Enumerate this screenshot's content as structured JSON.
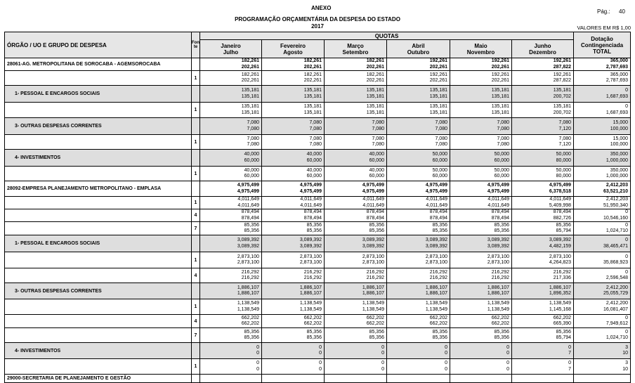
{
  "header": {
    "title": "ANEXO",
    "subtitle": "PROGRAMAÇÃO ORÇAMENTÁRIA DA DESPESA DO ESTADO",
    "year": "2017",
    "page_label": "Pág.:",
    "page": "40",
    "units": "VALORES EM R$ 1,00"
  },
  "table": {
    "columns": {
      "label": "ÓRGÃO / UO  E GRUPO DE DESPESA",
      "fonte": "Fonte",
      "quotas": "QUOTAS",
      "months": [
        [
          "Janeiro",
          "Julho"
        ],
        [
          "Fevereiro",
          "Agosto"
        ],
        [
          "Março",
          "Setembro"
        ],
        [
          "Abril",
          "Outubro"
        ],
        [
          "Maio",
          "Novembro"
        ],
        [
          "Junho",
          "Dezembro"
        ]
      ],
      "total": [
        "Dotação",
        "Contingenciada",
        "TOTAL"
      ]
    },
    "rows": [
      {
        "label": "28061-AG. METROPOLITANA DE SOROCABA - AGEMSOROCABA",
        "cells": [
          [
            "182,261",
            "202,261"
          ],
          [
            "182,261",
            "202,261"
          ],
          [
            "182,261",
            "202,261"
          ],
          [
            "192,261",
            "202,261"
          ],
          [
            "192,261",
            "202,261"
          ],
          [
            "192,261",
            "287,822"
          ],
          [
            "365,000",
            "2,787,693"
          ]
        ]
      },
      {
        "fonte": "1",
        "cells": [
          [
            "182,261",
            "202,261"
          ],
          [
            "182,261",
            "202,261"
          ],
          [
            "182,261",
            "202,261"
          ],
          [
            "192,261",
            "202,261"
          ],
          [
            "192,261",
            "202,261"
          ],
          [
            "192,261",
            "287,822"
          ],
          [
            "365,000",
            "2,787,693"
          ]
        ]
      },
      {
        "label": "1- PESSOAL E ENCARGOS SOCIAIS",
        "cells": [
          [
            "135,181",
            "135,181"
          ],
          [
            "135,181",
            "135,181"
          ],
          [
            "135,181",
            "135,181"
          ],
          [
            "135,181",
            "135,181"
          ],
          [
            "135,181",
            "135,181"
          ],
          [
            "135,181",
            "200,702"
          ],
          [
            "0",
            "1,687,693"
          ]
        ]
      },
      {
        "fonte": "1",
        "cells": [
          [
            "135,181",
            "135,181"
          ],
          [
            "135,181",
            "135,181"
          ],
          [
            "135,181",
            "135,181"
          ],
          [
            "135,181",
            "135,181"
          ],
          [
            "135,181",
            "135,181"
          ],
          [
            "135,181",
            "200,702"
          ],
          [
            "0",
            "1,687,693"
          ]
        ]
      },
      {
        "label": "3- OUTRAS DESPESAS CORRENTES",
        "cells": [
          [
            "7,080",
            "7,080"
          ],
          [
            "7,080",
            "7,080"
          ],
          [
            "7,080",
            "7,080"
          ],
          [
            "7,080",
            "7,080"
          ],
          [
            "7,080",
            "7,080"
          ],
          [
            "7,080",
            "7,120"
          ],
          [
            "15,000",
            "100,000"
          ]
        ]
      },
      {
        "fonte": "1",
        "cells": [
          [
            "7,080",
            "7,080"
          ],
          [
            "7,080",
            "7,080"
          ],
          [
            "7,080",
            "7,080"
          ],
          [
            "7,080",
            "7,080"
          ],
          [
            "7,080",
            "7,080"
          ],
          [
            "7,080",
            "7,120"
          ],
          [
            "15,000",
            "100,000"
          ]
        ]
      },
      {
        "label": "4- INVESTIMENTOS",
        "cells": [
          [
            "40,000",
            "60,000"
          ],
          [
            "40,000",
            "60,000"
          ],
          [
            "40,000",
            "60,000"
          ],
          [
            "50,000",
            "60,000"
          ],
          [
            "50,000",
            "60,000"
          ],
          [
            "50,000",
            "80,000"
          ],
          [
            "350,000",
            "1,000,000"
          ]
        ]
      },
      {
        "fonte": "1",
        "cells": [
          [
            "40,000",
            "60,000"
          ],
          [
            "40,000",
            "60,000"
          ],
          [
            "40,000",
            "60,000"
          ],
          [
            "50,000",
            "60,000"
          ],
          [
            "50,000",
            "60,000"
          ],
          [
            "50,000",
            "80,000"
          ],
          [
            "350,000",
            "1,000,000"
          ]
        ]
      },
      {
        "label": "28092-EMPRESA PLANEJAMENTO METROPOLITANO - EMPLASA",
        "cells": [
          [
            "4,975,499",
            "4,975,499"
          ],
          [
            "4,975,499",
            "4,975,499"
          ],
          [
            "4,975,499",
            "4,975,499"
          ],
          [
            "4,975,499",
            "4,975,499"
          ],
          [
            "4,975,499",
            "4,975,499"
          ],
          [
            "4,975,499",
            "6,378,518"
          ],
          [
            "2,412,203",
            "63,521,210"
          ]
        ]
      },
      {
        "fonte": "1",
        "cells": [
          [
            "4,011,649",
            "4,011,649"
          ],
          [
            "4,011,649",
            "4,011,649"
          ],
          [
            "4,011,649",
            "4,011,649"
          ],
          [
            "4,011,649",
            "4,011,649"
          ],
          [
            "4,011,649",
            "4,011,649"
          ],
          [
            "4,011,649",
            "5,409,998"
          ],
          [
            "2,412,203",
            "51,950,340"
          ]
        ]
      },
      {
        "fonte": "4",
        "cells": [
          [
            "878,494",
            "878,494"
          ],
          [
            "878,494",
            "878,494"
          ],
          [
            "878,494",
            "878,494"
          ],
          [
            "878,494",
            "878,494"
          ],
          [
            "878,494",
            "878,494"
          ],
          [
            "878,494",
            "882,726"
          ],
          [
            "0",
            "10,546,160"
          ]
        ]
      },
      {
        "fonte": "7",
        "cells": [
          [
            "85,356",
            "85,356"
          ],
          [
            "85,356",
            "85,356"
          ],
          [
            "85,356",
            "85,356"
          ],
          [
            "85,356",
            "85,356"
          ],
          [
            "85,356",
            "85,356"
          ],
          [
            "85,356",
            "85,794"
          ],
          [
            "0",
            "1,024,710"
          ]
        ]
      },
      {
        "label": "1- PESSOAL E ENCARGOS SOCIAIS",
        "cells": [
          [
            "3,089,392",
            "3,089,392"
          ],
          [
            "3,089,392",
            "3,089,392"
          ],
          [
            "3,089,392",
            "3,089,392"
          ],
          [
            "3,089,392",
            "3,089,392"
          ],
          [
            "3,089,392",
            "3,089,392"
          ],
          [
            "3,089,392",
            "4,482,159"
          ],
          [
            "0",
            "38,465,471"
          ]
        ]
      },
      {
        "fonte": "1",
        "cells": [
          [
            "2,873,100",
            "2,873,100"
          ],
          [
            "2,873,100",
            "2,873,100"
          ],
          [
            "2,873,100",
            "2,873,100"
          ],
          [
            "2,873,100",
            "2,873,100"
          ],
          [
            "2,873,100",
            "2,873,100"
          ],
          [
            "2,873,100",
            "4,264,823"
          ],
          [
            "0",
            "35,868,923"
          ]
        ]
      },
      {
        "fonte": "4",
        "cells": [
          [
            "216,292",
            "216,292"
          ],
          [
            "216,292",
            "216,292"
          ],
          [
            "216,292",
            "216,292"
          ],
          [
            "216,292",
            "216,292"
          ],
          [
            "216,292",
            "216,292"
          ],
          [
            "216,292",
            "217,336"
          ],
          [
            "0",
            "2,596,548"
          ]
        ]
      },
      {
        "label": "3- OUTRAS DESPESAS CORRENTES",
        "cells": [
          [
            "1,886,107",
            "1,886,107"
          ],
          [
            "1,886,107",
            "1,886,107"
          ],
          [
            "1,886,107",
            "1,886,107"
          ],
          [
            "1,886,107",
            "1,886,107"
          ],
          [
            "1,886,107",
            "1,886,107"
          ],
          [
            "1,886,107",
            "1,896,352"
          ],
          [
            "2,412,200",
            "25,055,729"
          ]
        ]
      },
      {
        "fonte": "1",
        "cells": [
          [
            "1,138,549",
            "1,138,549"
          ],
          [
            "1,138,549",
            "1,138,549"
          ],
          [
            "1,138,549",
            "1,138,549"
          ],
          [
            "1,138,549",
            "1,138,549"
          ],
          [
            "1,138,549",
            "1,138,549"
          ],
          [
            "1,138,549",
            "1,145,168"
          ],
          [
            "2,412,200",
            "16,081,407"
          ]
        ]
      },
      {
        "fonte": "4",
        "cells": [
          [
            "662,202",
            "662,202"
          ],
          [
            "662,202",
            "662,202"
          ],
          [
            "662,202",
            "662,202"
          ],
          [
            "662,202",
            "662,202"
          ],
          [
            "662,202",
            "662,202"
          ],
          [
            "662,202",
            "665,390"
          ],
          [
            "0",
            "7,949,612"
          ]
        ]
      },
      {
        "fonte": "7",
        "cells": [
          [
            "85,356",
            "85,356"
          ],
          [
            "85,356",
            "85,356"
          ],
          [
            "85,356",
            "85,356"
          ],
          [
            "85,356",
            "85,356"
          ],
          [
            "85,356",
            "85,356"
          ],
          [
            "85,356",
            "85,794"
          ],
          [
            "0",
            "1,024,710"
          ]
        ]
      },
      {
        "label": "4- INVESTIMENTOS",
        "cells": [
          [
            "0",
            "0"
          ],
          [
            "0",
            "0"
          ],
          [
            "0",
            "0"
          ],
          [
            "0",
            "0"
          ],
          [
            "0",
            "0"
          ],
          [
            "0",
            "7"
          ],
          [
            "3",
            "10"
          ]
        ]
      },
      {
        "fonte": "1",
        "cells": [
          [
            "0",
            "0"
          ],
          [
            "0",
            "0"
          ],
          [
            "0",
            "0"
          ],
          [
            "0",
            "0"
          ],
          [
            "0",
            "0"
          ],
          [
            "0",
            "7"
          ],
          [
            "3",
            "10"
          ]
        ]
      },
      {
        "label": "29000-SECRETARIA DE PLANEJAMENTO E GESTÃO"
      }
    ]
  }
}
